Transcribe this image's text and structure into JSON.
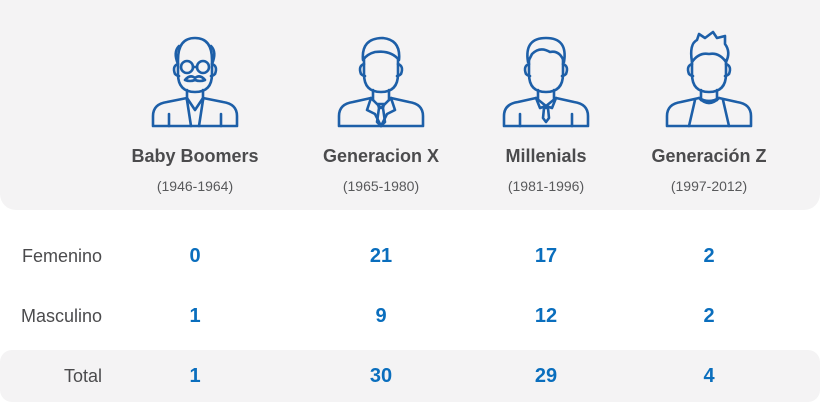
{
  "generations": [
    {
      "name": "Baby Boomers",
      "years": "(1946-1964)",
      "icon": "grandfather-icon"
    },
    {
      "name": "Generacion X",
      "years": "(1965-1980)",
      "icon": "man-suit-icon"
    },
    {
      "name": "Millenials",
      "years": "(1981-1996)",
      "icon": "man-shirt-icon"
    },
    {
      "name": "Generación Z",
      "years": "(1997-2012)",
      "icon": "young-man-icon"
    }
  ],
  "rows": [
    {
      "label": "Femenino",
      "values": [
        "0",
        "21",
        "17",
        "2"
      ]
    },
    {
      "label": "Masculino",
      "values": [
        "1",
        "9",
        "12",
        "2"
      ]
    },
    {
      "label": "Total",
      "values": [
        "1",
        "30",
        "29",
        "4"
      ]
    }
  ],
  "colors": {
    "accent": "#0a6ebd",
    "icon_stroke": "#1d5fa8",
    "panel_bg": "#f4f3f4",
    "text": "#4b4b4d"
  }
}
